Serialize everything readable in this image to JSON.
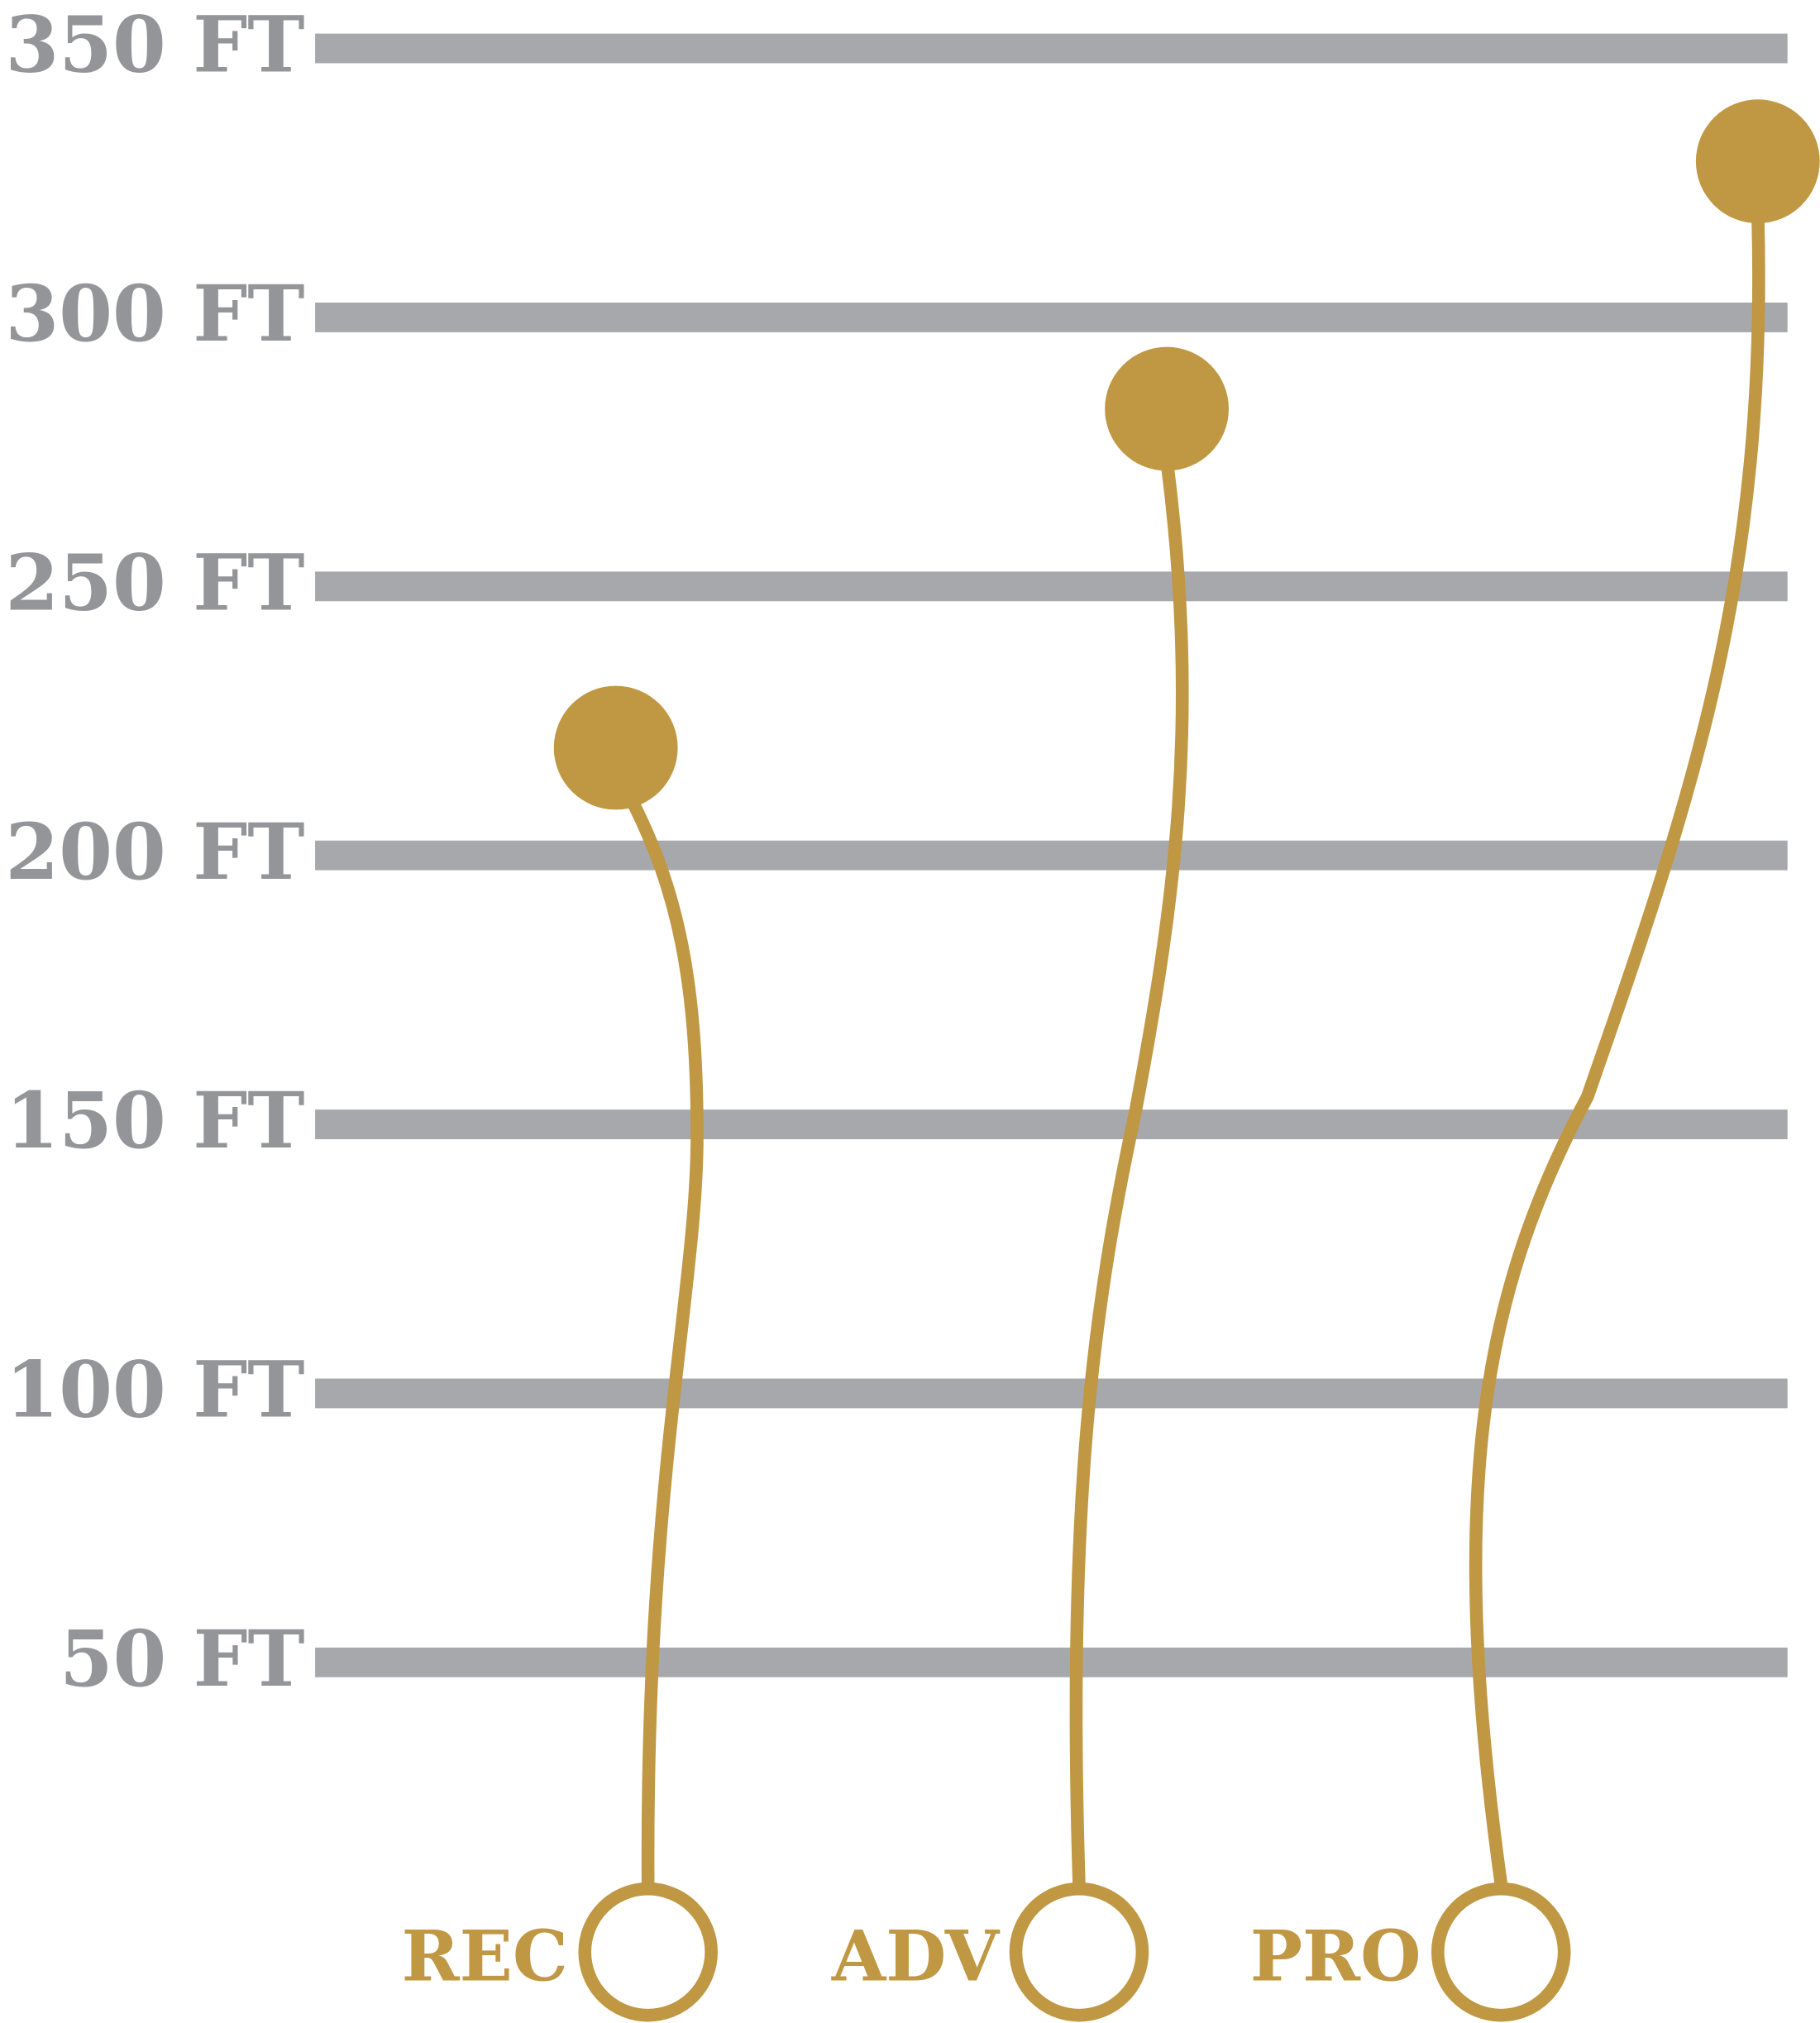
{
  "chart_data": {
    "type": "line",
    "title": "",
    "xlabel": "",
    "ylabel": "",
    "ylim": [
      0,
      350
    ],
    "grid": true,
    "y_ticks": [
      {
        "value": 350,
        "label": "350 FT"
      },
      {
        "value": 300,
        "label": "300 FT"
      },
      {
        "value": 250,
        "label": "250 FT"
      },
      {
        "value": 200,
        "label": "200 FT"
      },
      {
        "value": 150,
        "label": "150 FT"
      },
      {
        "value": 100,
        "label": "100 FT"
      },
      {
        "value": 50,
        "label": "50 FT"
      }
    ],
    "categories": [
      "REC",
      "ADV",
      "PRO"
    ],
    "values": [
      220,
      283,
      329
    ],
    "colors": {
      "accent": "#c09742",
      "grid": "#a7a8ab",
      "tick_text": "#939598"
    }
  }
}
